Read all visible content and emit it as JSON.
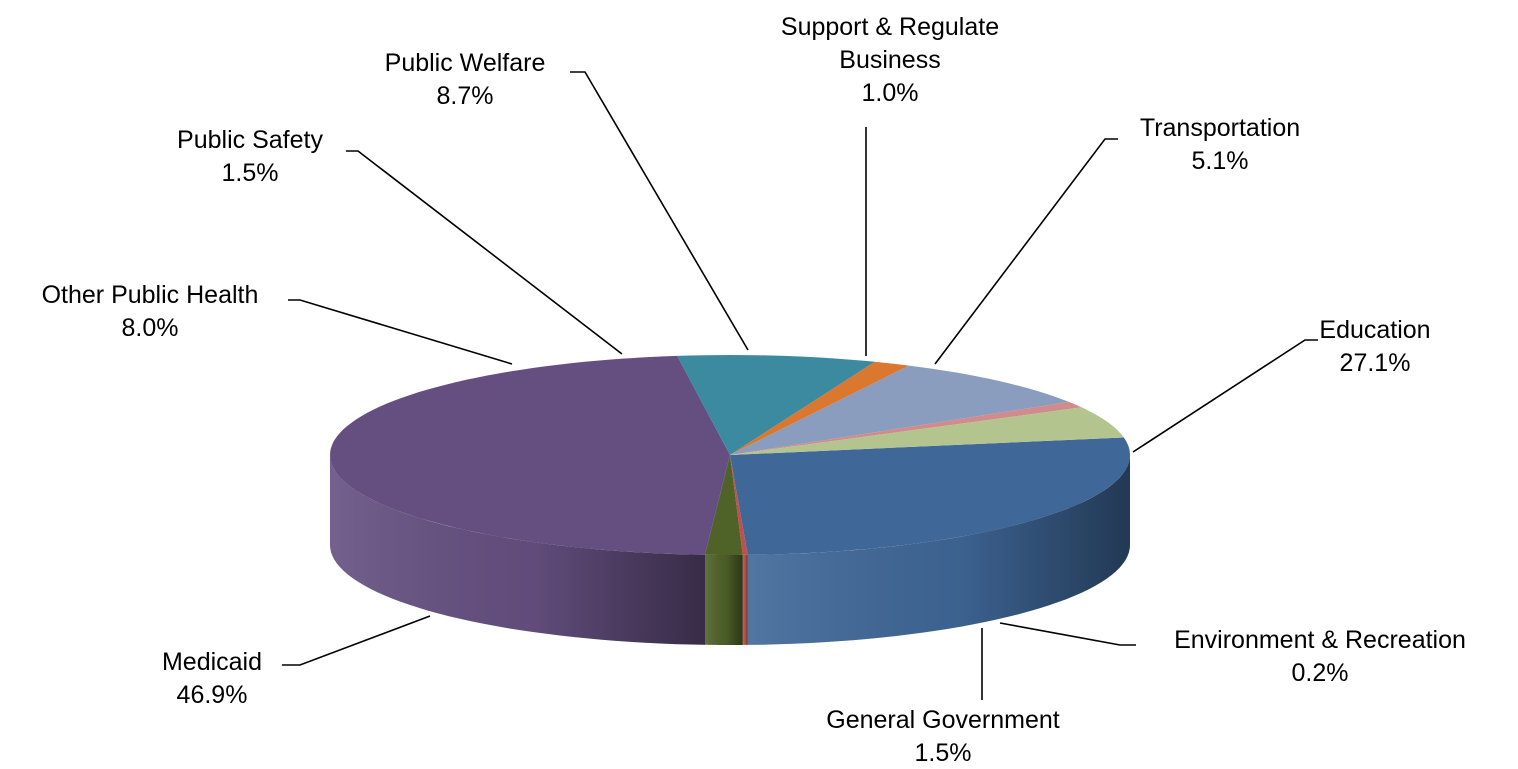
{
  "chart_data": {
    "type": "pie",
    "title": "",
    "slices": [
      {
        "label": "Education",
        "value_label": "27.1%",
        "value": 27.1,
        "color": "#3f6798",
        "side": "#1c2d45"
      },
      {
        "label": "Environment & Recreation",
        "value_label": "0.2%",
        "value": 0.2,
        "color": "#c0504d",
        "side": "#6e2a28"
      },
      {
        "label": "General Government",
        "value_label": "1.5%",
        "value": 1.5,
        "color": "#4f6228",
        "side": "#222b12"
      },
      {
        "label": "Medicaid",
        "value_label": "46.9%",
        "value": 46.9,
        "color": "#654f80",
        "side": "#4a3a5f"
      },
      {
        "label": "Other Public Health",
        "value_label": "8.0%",
        "value": 8.0,
        "color": "#3b8aa0",
        "side": "#25586a"
      },
      {
        "label": "Public Safety",
        "value_label": "1.5%",
        "value": 1.5,
        "color": "#d9782e",
        "side": "#8a4a1c"
      },
      {
        "label": "Public Welfare",
        "value_label": "8.7%",
        "value": 8.7,
        "color": "#8a9dbf",
        "side": "#56637a"
      },
      {
        "label": "Support & Regulate Business",
        "value_label": "1.0%",
        "value": 1.0,
        "color": "#d08c8c",
        "side": "#8a5555"
      },
      {
        "label": "Transportation",
        "value_label": "5.1%",
        "value": 5.1,
        "color": "#b3c48f",
        "side": "#76845c"
      }
    ],
    "legend": "none"
  }
}
